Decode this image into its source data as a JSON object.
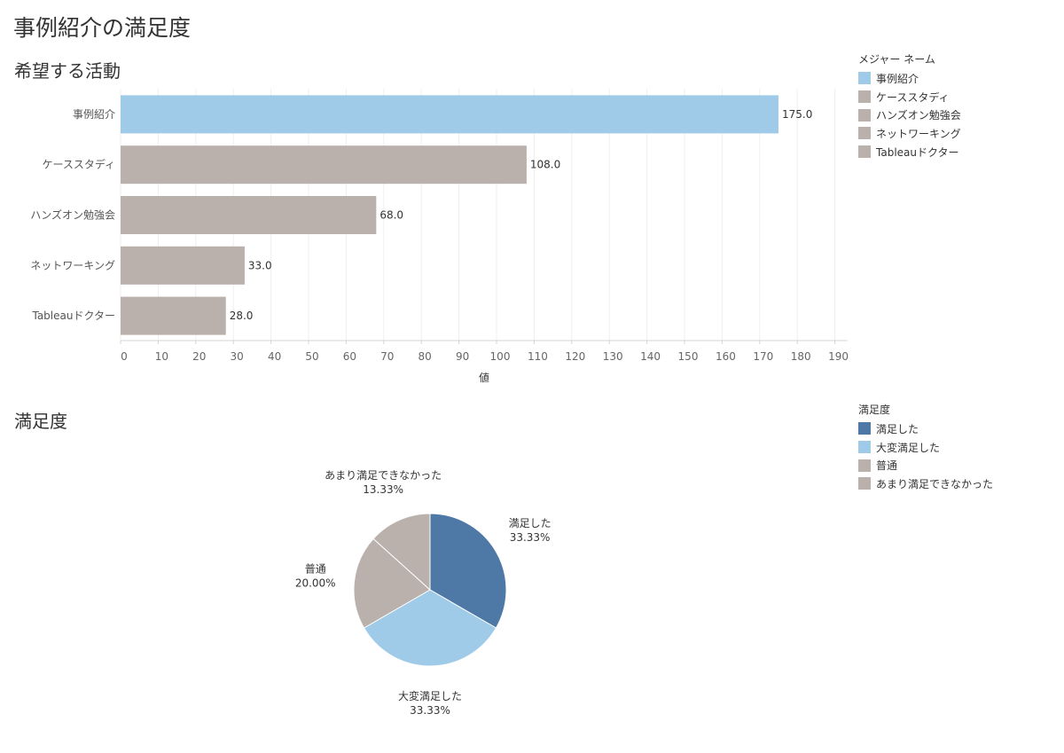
{
  "dashboard_title": "事例紹介の満足度",
  "bar_sheet": {
    "title": "希望する活動"
  },
  "pie_sheet": {
    "title": "満足度"
  },
  "legend_bar": {
    "title": "メジャー ネーム",
    "items": [
      {
        "label": "事例紹介",
        "color": "#a0cbe8"
      },
      {
        "label": "ケーススタディ",
        "color": "#bab0ac"
      },
      {
        "label": "ハンズオン勉強会",
        "color": "#bab0ac"
      },
      {
        "label": "ネットワーキング",
        "color": "#bab0ac"
      },
      {
        "label": "Tableauドクター",
        "color": "#bab0ac"
      }
    ]
  },
  "legend_pie": {
    "title": "満足度",
    "items": [
      {
        "label": "満足した",
        "color": "#4e79a7"
      },
      {
        "label": "大変満足した",
        "color": "#a0cbe8"
      },
      {
        "label": "普通",
        "color": "#bab0ac"
      },
      {
        "label": "あまり満足できなかった",
        "color": "#bab0ac"
      }
    ]
  },
  "chart_data": [
    {
      "type": "bar",
      "orientation": "horizontal",
      "title": "希望する活動",
      "categories": [
        "事例紹介",
        "ケーススタディ",
        "ハンズオン勉強会",
        "ネットワーキング",
        "Tableauドクター"
      ],
      "values": [
        175.0,
        108.0,
        68.0,
        33.0,
        28.0
      ],
      "value_labels": [
        "175.0",
        "108.0",
        "68.0",
        "33.0",
        "28.0"
      ],
      "colors": [
        "#a0cbe8",
        "#bab0ac",
        "#bab0ac",
        "#bab0ac",
        "#bab0ac"
      ],
      "xlabel": "値",
      "ylabel": "",
      "xlim": [
        0,
        190
      ],
      "xticks": [
        0,
        10,
        20,
        30,
        40,
        50,
        60,
        70,
        80,
        90,
        100,
        110,
        120,
        130,
        140,
        150,
        160,
        170,
        180,
        190
      ],
      "grid": true,
      "legend": "right"
    },
    {
      "type": "pie",
      "title": "満足度",
      "slices": [
        {
          "label": "満足した",
          "value": 33.33,
          "value_label": "33.33%",
          "color": "#4e79a7"
        },
        {
          "label": "大変満足した",
          "value": 33.33,
          "value_label": "33.33%",
          "color": "#a0cbe8"
        },
        {
          "label": "普通",
          "value": 20.0,
          "value_label": "20.00%",
          "color": "#bab0ac"
        },
        {
          "label": "あまり満足できなかった",
          "value": 13.33,
          "value_label": "13.33%",
          "color": "#bab0ac"
        }
      ],
      "legend": "right"
    }
  ]
}
